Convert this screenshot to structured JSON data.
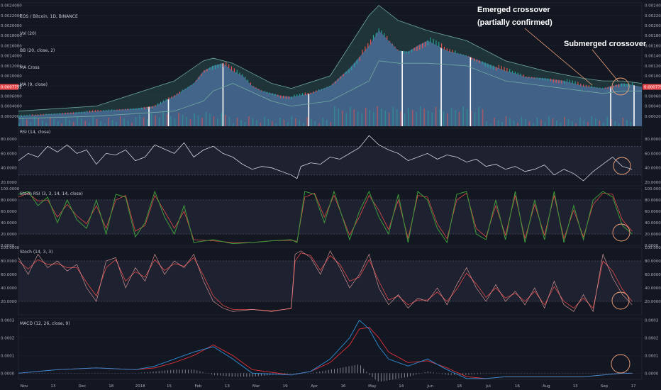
{
  "main_legend": [
    "EOS / Bitcoin, 1D, BINANCE",
    "Vol (20)",
    "BB (20, close, 2)",
    "MA Cross",
    "MA (9, close)"
  ],
  "annotations": {
    "emerged_line1": "Emerged crossover",
    "emerged_line2": "(partially confirmed)",
    "submerged": "Submerged crossover"
  },
  "price_badge": "0.0007752",
  "colors": {
    "background": "#131722",
    "grid": "#1f2433",
    "price_fill": "#4a6f98",
    "bb_fill": "#2a4d4a",
    "up": "#26a69a",
    "down": "#ef5350",
    "rsi_line": "#cfd3dc",
    "stoch_k": "#3f9a3a",
    "stoch_d": "#e04848",
    "macd_line": "#2f8fd8",
    "signal_line": "#e0303a",
    "annotation": "#f2a27a"
  },
  "chart_data": [
    {
      "type": "line",
      "title": "EOS / Bitcoin, 1D, BINANCE",
      "x_tick_labels": [
        "Nov",
        "13",
        "Dec",
        "18",
        "2018",
        "15",
        "Feb",
        "13",
        "Mar",
        "19",
        "Apr",
        "16",
        "May",
        "14",
        "Jun",
        "18",
        "Jul",
        "16",
        "Aug",
        "13",
        "Sep",
        "17"
      ],
      "y_tick_labels": [
        "0.0024000",
        "0.0022000",
        "0.0020000",
        "0.0018000",
        "0.0016000",
        "0.0014000",
        "0.0012000",
        "0.0010000",
        "0.0008000",
        "0.0006000",
        "0.0004000",
        "0.0002000"
      ],
      "ylim": [
        0.0,
        0.00245
      ],
      "x_index_range": [
        0,
        320
      ],
      "series": [
        {
          "name": "EOS / Bitcoin",
          "x": [
            0,
            20,
            40,
            60,
            70,
            80,
            90,
            95,
            100,
            105,
            110,
            115,
            120,
            125,
            130,
            135,
            140,
            150,
            160,
            170,
            180,
            185,
            190,
            195,
            200,
            205,
            210,
            220,
            230,
            240,
            250,
            255,
            260,
            270,
            280,
            290,
            300,
            305,
            310,
            315,
            320
          ],
          "values": [
            0.0002,
            0.00025,
            0.0003,
            0.00035,
            0.0004,
            0.0006,
            0.00085,
            0.0011,
            0.0012,
            0.00125,
            0.0011,
            0.001,
            0.0008,
            0.0007,
            0.00065,
            0.0006,
            0.00058,
            0.00065,
            0.0008,
            0.00115,
            0.0016,
            0.0019,
            0.0017,
            0.0015,
            0.00148,
            0.0016,
            0.0017,
            0.0015,
            0.0014,
            0.00125,
            0.0011,
            0.00105,
            0.00098,
            0.00095,
            0.0009,
            0.0008,
            0.00075,
            0.0008,
            0.00085,
            0.00082,
            0.00078
          ]
        },
        {
          "name": "BB upper",
          "x": [
            0,
            40,
            80,
            95,
            100,
            110,
            130,
            140,
            160,
            180,
            185,
            195,
            210,
            230,
            250,
            270,
            290,
            300,
            310,
            320
          ],
          "values": [
            0.0003,
            0.0004,
            0.0009,
            0.0013,
            0.00135,
            0.00125,
            0.00085,
            0.00075,
            0.001,
            0.0022,
            0.0024,
            0.0021,
            0.0019,
            0.0017,
            0.0013,
            0.0011,
            0.00095,
            0.0009,
            0.0009,
            0.00085
          ]
        },
        {
          "name": "BB lower",
          "x": [
            0,
            40,
            80,
            95,
            100,
            110,
            130,
            140,
            160,
            180,
            185,
            195,
            210,
            230,
            250,
            270,
            290,
            300,
            310,
            320
          ],
          "values": [
            0.00015,
            0.0002,
            0.0003,
            0.0005,
            0.0007,
            0.00085,
            0.0005,
            0.0004,
            0.0005,
            0.0009,
            0.0013,
            0.00125,
            0.00125,
            0.0012,
            0.0009,
            0.0008,
            0.0007,
            0.00065,
            0.0007,
            0.0007
          ]
        }
      ],
      "crossover_markers_x": [
        67,
        77,
        105,
        149,
        197,
        217,
        232,
        304,
        316
      ]
    },
    {
      "type": "line",
      "title": "RSI (14, close)",
      "y_tick_labels": [
        "80.0000",
        "60.0000",
        "40.0000",
        "20.0000"
      ],
      "ylim": [
        15,
        95
      ],
      "bands": [
        30,
        70
      ],
      "series": [
        {
          "name": "RSI (14, close)",
          "x": [
            0,
            5,
            10,
            15,
            20,
            25,
            30,
            35,
            40,
            45,
            50,
            55,
            60,
            65,
            70,
            75,
            80,
            85,
            90,
            95,
            100,
            105,
            110,
            115,
            120,
            125,
            130,
            135,
            140,
            143,
            145,
            150,
            155,
            160,
            165,
            170,
            175,
            180,
            185,
            190,
            195,
            200,
            205,
            210,
            215,
            220,
            225,
            230,
            235,
            240,
            245,
            250,
            255,
            260,
            265,
            270,
            275,
            280,
            285,
            290,
            295,
            300,
            305,
            310,
            315
          ],
          "values": [
            50,
            60,
            55,
            70,
            62,
            72,
            60,
            65,
            45,
            60,
            58,
            65,
            50,
            55,
            72,
            66,
            60,
            75,
            55,
            65,
            70,
            60,
            55,
            45,
            38,
            42,
            40,
            35,
            30,
            25,
            42,
            47,
            45,
            55,
            52,
            60,
            68,
            85,
            72,
            65,
            60,
            50,
            55,
            60,
            52,
            58,
            55,
            48,
            52,
            42,
            45,
            38,
            42,
            35,
            38,
            44,
            30,
            38,
            32,
            22,
            35,
            45,
            55,
            42,
            38
          ]
        }
      ]
    },
    {
      "type": "line",
      "title": "Stoch RSI (3, 3, 14, 14, close)",
      "y_tick_labels": [
        "100.0000",
        "80.0000",
        "60.0000",
        "40.0000",
        "20.0000",
        "0.0000"
      ],
      "ylim": [
        0,
        100
      ],
      "bands": [
        20,
        80
      ],
      "series": [
        {
          "name": "K",
          "x": [
            0,
            5,
            10,
            15,
            20,
            25,
            30,
            35,
            40,
            45,
            50,
            55,
            60,
            65,
            70,
            75,
            80,
            85,
            90,
            100,
            110,
            120,
            130,
            140,
            143,
            147,
            152,
            157,
            162,
            170,
            175,
            180,
            185,
            190,
            195,
            200,
            205,
            210,
            215,
            220,
            225,
            230,
            235,
            240,
            245,
            250,
            255,
            260,
            265,
            270,
            275,
            280,
            285,
            290,
            295,
            300,
            305,
            310,
            315
          ],
          "values": [
            90,
            95,
            70,
            85,
            40,
            80,
            45,
            30,
            80,
            20,
            90,
            85,
            15,
            40,
            95,
            50,
            20,
            70,
            5,
            10,
            3,
            5,
            8,
            10,
            5,
            95,
            90,
            40,
            95,
            10,
            60,
            95,
            50,
            20,
            90,
            5,
            95,
            80,
            30,
            5,
            90,
            95,
            20,
            10,
            80,
            10,
            95,
            5,
            80,
            10,
            95,
            5,
            70,
            10,
            80,
            95,
            85,
            35,
            20
          ]
        },
        {
          "name": "D",
          "x": [
            0,
            5,
            10,
            15,
            20,
            25,
            30,
            35,
            40,
            45,
            50,
            55,
            60,
            65,
            70,
            75,
            80,
            85,
            90,
            100,
            110,
            120,
            130,
            140,
            143,
            147,
            152,
            157,
            162,
            170,
            175,
            180,
            185,
            190,
            195,
            200,
            205,
            210,
            215,
            220,
            225,
            230,
            235,
            240,
            245,
            250,
            255,
            260,
            265,
            270,
            275,
            280,
            285,
            290,
            295,
            300,
            305,
            310,
            315
          ],
          "values": [
            85,
            92,
            78,
            80,
            50,
            72,
            52,
            38,
            70,
            30,
            80,
            88,
            25,
            35,
            88,
            60,
            30,
            60,
            10,
            8,
            5,
            5,
            8,
            9,
            7,
            85,
            92,
            50,
            88,
            18,
            50,
            88,
            62,
            28,
            80,
            12,
            88,
            85,
            38,
            12,
            80,
            92,
            30,
            15,
            70,
            18,
            88,
            12,
            72,
            18,
            88,
            12,
            62,
            15,
            72,
            92,
            90,
            45,
            25
          ]
        }
      ]
    },
    {
      "type": "line",
      "title": "Stoch (14, 3, 3)",
      "y_tick_labels": [
        "100.0000",
        "80.0000",
        "60.0000",
        "40.0000",
        "20.0000"
      ],
      "ylim": [
        0,
        100
      ],
      "bands": [
        20,
        80
      ],
      "series": [
        {
          "name": "K",
          "x": [
            0,
            5,
            10,
            15,
            20,
            25,
            30,
            35,
            40,
            45,
            50,
            55,
            60,
            65,
            70,
            75,
            80,
            85,
            90,
            95,
            100,
            105,
            110,
            120,
            130,
            140,
            142,
            145,
            150,
            155,
            160,
            165,
            170,
            175,
            180,
            185,
            190,
            195,
            200,
            205,
            210,
            215,
            220,
            225,
            230,
            235,
            240,
            245,
            250,
            255,
            260,
            265,
            270,
            275,
            280,
            285,
            290,
            295,
            300,
            305,
            310,
            315
          ],
          "values": [
            85,
            60,
            90,
            70,
            80,
            65,
            75,
            40,
            20,
            80,
            85,
            40,
            70,
            50,
            90,
            60,
            80,
            70,
            90,
            50,
            20,
            10,
            5,
            8,
            5,
            10,
            90,
            95,
            85,
            60,
            95,
            70,
            40,
            60,
            90,
            40,
            15,
            30,
            10,
            25,
            20,
            40,
            15,
            45,
            70,
            40,
            20,
            45,
            20,
            35,
            15,
            40,
            10,
            50,
            15,
            5,
            30,
            5,
            90,
            55,
            30,
            15
          ]
        },
        {
          "name": "D",
          "x": [
            0,
            5,
            10,
            15,
            20,
            25,
            30,
            35,
            40,
            45,
            50,
            55,
            60,
            65,
            70,
            75,
            80,
            85,
            90,
            95,
            100,
            105,
            110,
            120,
            130,
            140,
            142,
            145,
            150,
            155,
            160,
            165,
            170,
            175,
            180,
            185,
            190,
            195,
            200,
            205,
            210,
            215,
            220,
            225,
            230,
            235,
            240,
            245,
            250,
            255,
            260,
            265,
            270,
            275,
            280,
            285,
            290,
            295,
            300,
            305,
            310,
            315
          ],
          "values": [
            80,
            68,
            82,
            75,
            76,
            70,
            70,
            48,
            28,
            70,
            82,
            50,
            64,
            56,
            82,
            66,
            76,
            72,
            85,
            58,
            28,
            14,
            8,
            8,
            6,
            9,
            80,
            92,
            88,
            66,
            88,
            75,
            50,
            56,
            82,
            50,
            22,
            28,
            15,
            22,
            22,
            34,
            20,
            38,
            62,
            46,
            26,
            40,
            25,
            32,
            20,
            35,
            15,
            42,
            20,
            10,
            25,
            10,
            80,
            65,
            38,
            20
          ]
        }
      ]
    },
    {
      "type": "line",
      "title": "MACD (12, 26, close, 9)",
      "y_tick_labels": [
        "0.0003",
        "0.0002",
        "0.0001",
        "0.0000"
      ],
      "ylim": [
        -3.5e-05,
        0.00031
      ],
      "series": [
        {
          "name": "MACD",
          "x": [
            0,
            20,
            40,
            60,
            70,
            80,
            90,
            100,
            110,
            120,
            140,
            150,
            160,
            170,
            175,
            180,
            185,
            190,
            200,
            210,
            220,
            230,
            240,
            250,
            260,
            270,
            280,
            290,
            300,
            310,
            315
          ],
          "values": [
            0.0,
            2e-05,
            3e-05,
            2e-05,
            4e-05,
            8e-05,
            0.00012,
            0.00015,
            8e-05,
            0.0,
            -1e-05,
            1e-05,
            8e-05,
            0.0002,
            0.0003,
            0.00025,
            0.00015,
            8e-05,
            4e-05,
            8e-05,
            2e-05,
            -3e-05,
            -3e-05,
            -2e-05,
            -2e-05,
            -2e-05,
            -2e-05,
            -2e-05,
            -1e-05,
            0.0,
            0.0
          ]
        },
        {
          "name": "Signal",
          "x": [
            0,
            20,
            40,
            60,
            70,
            80,
            90,
            100,
            110,
            120,
            140,
            150,
            160,
            170,
            175,
            180,
            185,
            190,
            200,
            210,
            220,
            230,
            240,
            250,
            260,
            270,
            280,
            290,
            300,
            310,
            315
          ],
          "values": [
            0.0,
            2e-05,
            3e-05,
            2e-05,
            3e-05,
            6e-05,
            0.0001,
            0.00016,
            0.0001,
            2e-05,
            -1e-05,
            1e-05,
            6e-05,
            0.00016,
            0.00025,
            0.00026,
            0.0002,
            0.00012,
            6e-05,
            7e-05,
            3e-05,
            -2e-05,
            -3e-05,
            -2e-05,
            -2e-05,
            -2e-05,
            -2e-05,
            -2e-05,
            -1e-05,
            0.0,
            0.0
          ]
        }
      ]
    }
  ]
}
